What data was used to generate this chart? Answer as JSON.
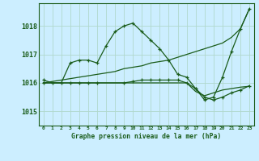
{
  "title": "Graphe pression niveau de la mer (hPa)",
  "background_color": "#cceeff",
  "grid_color": "#b0d8cc",
  "line_color": "#1a5c1a",
  "ylim": [
    1014.5,
    1018.8
  ],
  "yticks": [
    1015,
    1016,
    1017,
    1018
  ],
  "x_labels": [
    "0",
    "1",
    "2",
    "3",
    "4",
    "5",
    "6",
    "7",
    "8",
    "9",
    "10",
    "11",
    "12",
    "13",
    "14",
    "15",
    "16",
    "17",
    "18",
    "19",
    "20",
    "21",
    "22",
    "23"
  ],
  "series1": [
    1016.1,
    1016.0,
    1016.0,
    1016.7,
    1016.8,
    1016.8,
    1016.7,
    1017.3,
    1017.8,
    1018.0,
    1018.1,
    1017.8,
    1017.5,
    1017.2,
    1016.8,
    1016.3,
    1016.2,
    1015.8,
    1015.4,
    1015.5,
    1016.2,
    1017.1,
    1017.9,
    1018.6
  ],
  "series2": [
    1016.0,
    1016.05,
    1016.1,
    1016.15,
    1016.2,
    1016.25,
    1016.3,
    1016.35,
    1016.4,
    1016.5,
    1016.55,
    1016.6,
    1016.7,
    1016.75,
    1016.8,
    1016.9,
    1017.0,
    1017.1,
    1017.2,
    1017.3,
    1017.4,
    1017.6,
    1017.9,
    1018.6
  ],
  "series3_x": [
    0,
    3,
    4,
    5,
    6,
    9,
    10,
    11,
    12,
    13,
    14,
    15,
    16,
    17,
    18,
    19,
    20,
    21,
    22,
    23
  ],
  "series3": [
    1016.0,
    1016.0,
    1016.0,
    1016.0,
    1016.0,
    1016.0,
    1016.05,
    1016.1,
    1016.1,
    1016.1,
    1016.1,
    1016.1,
    1016.0,
    1015.8,
    1015.5,
    1015.4,
    1015.5,
    1015.65,
    1015.75,
    1015.9
  ],
  "series4_x": [
    0,
    1,
    2,
    3,
    4,
    5,
    6,
    7,
    8,
    9,
    10,
    11,
    12,
    13,
    14,
    15,
    16,
    17,
    18,
    19,
    20,
    21,
    22,
    23
  ],
  "series4": [
    1016.0,
    1016.0,
    1016.0,
    1016.0,
    1016.0,
    1016.0,
    1016.0,
    1016.0,
    1016.0,
    1016.0,
    1016.0,
    1016.0,
    1016.0,
    1016.0,
    1016.0,
    1016.0,
    1016.0,
    1015.7,
    1015.55,
    1015.65,
    1015.75,
    1015.8,
    1015.85,
    1015.88
  ]
}
